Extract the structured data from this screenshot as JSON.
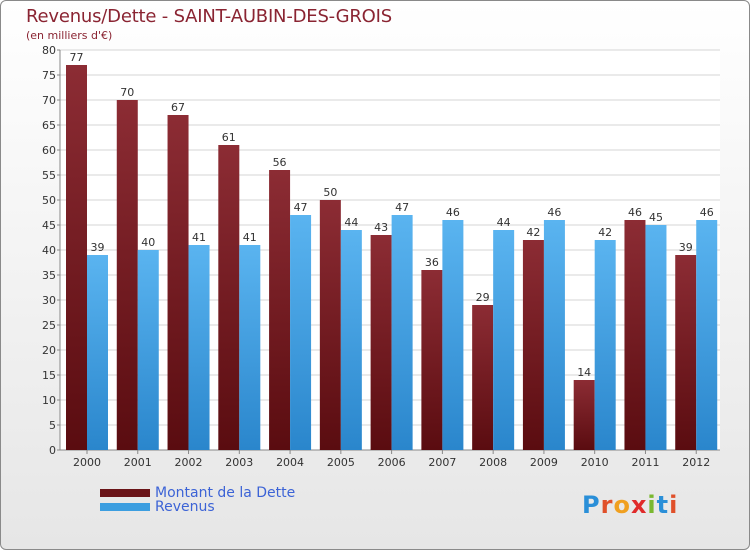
{
  "title": "Revenus/Dette - SAINT-AUBIN-DES-GROIS",
  "subtitle": "(en milliers d'€)",
  "colors": {
    "dette": "#7a1e22",
    "revenus": "#3c9ee0",
    "axis_text": "#333333",
    "title": "#8a2432",
    "legend_text": "#3c63d6"
  },
  "chart_data": {
    "type": "bar",
    "title": "Revenus/Dette - SAINT-AUBIN-DES-GROIS",
    "ylabel": "(en milliers d'€)",
    "xlabel": "",
    "categories": [
      "2000",
      "2001",
      "2002",
      "2003",
      "2004",
      "2005",
      "2006",
      "2007",
      "2008",
      "2009",
      "2010",
      "2011",
      "2012"
    ],
    "series": [
      {
        "name": "Montant de la Dette",
        "values": [
          77,
          70,
          67,
          61,
          56,
          50,
          43,
          36,
          29,
          42,
          14,
          46,
          39
        ]
      },
      {
        "name": "Revenus",
        "values": [
          39,
          40,
          41,
          41,
          47,
          44,
          47,
          46,
          44,
          46,
          42,
          45,
          46
        ]
      }
    ],
    "ylim": [
      0,
      80
    ],
    "yticks": [
      0,
      5,
      10,
      15,
      20,
      25,
      30,
      35,
      40,
      45,
      50,
      55,
      60,
      65,
      70,
      75,
      80
    ],
    "grid": true,
    "legend": "bottom-left"
  },
  "legend": {
    "dette_label": "Montant de la Dette",
    "revenus_label": "Revenus"
  },
  "logo": {
    "text": "Proxiti",
    "letters": [
      "P",
      "r",
      "o",
      "x",
      "i",
      "t",
      "i"
    ],
    "colors": [
      "#2a8fd8",
      "#e0502a",
      "#f0a020",
      "#e02a2a",
      "#7ab830",
      "#2a8fd8",
      "#e0502a"
    ]
  }
}
